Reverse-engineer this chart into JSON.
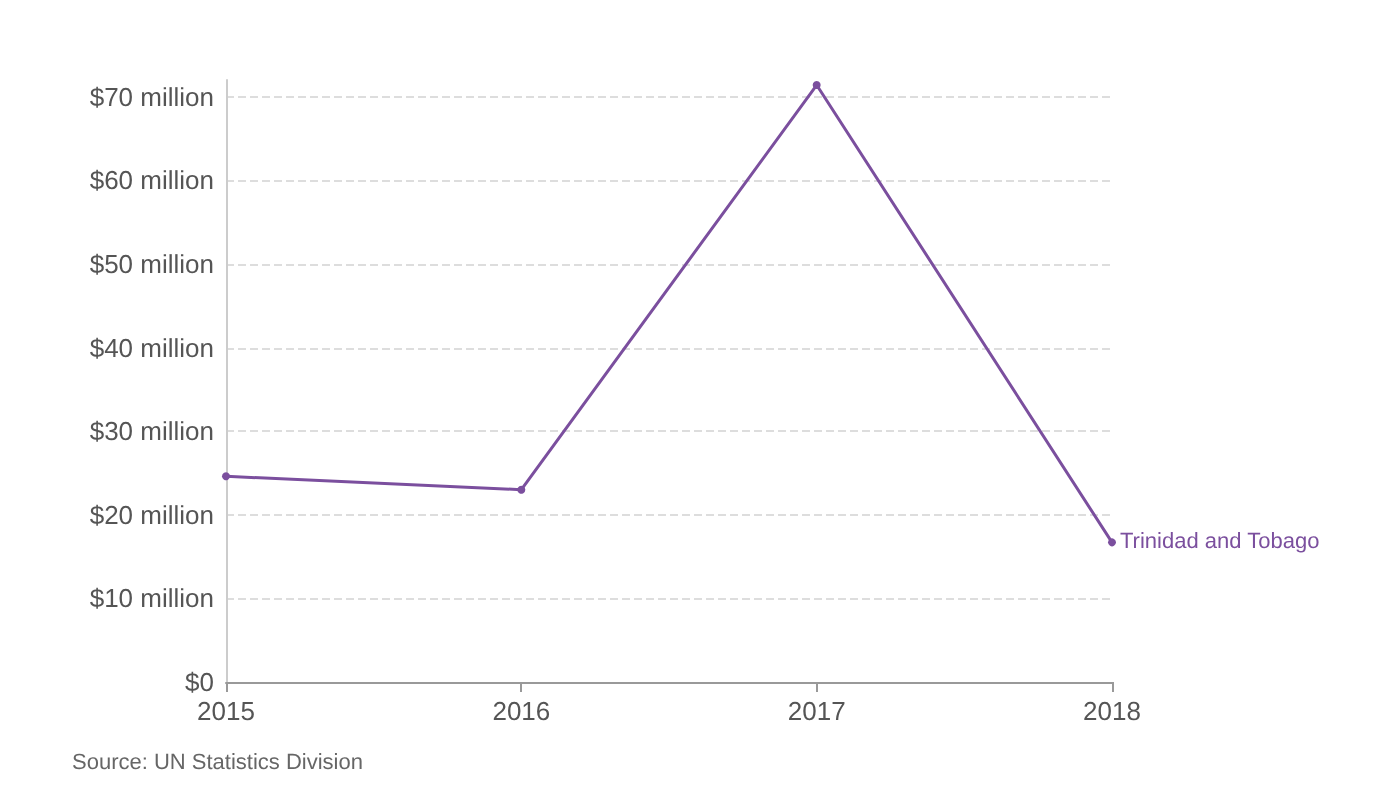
{
  "chart_data": {
    "type": "line",
    "x": [
      2015,
      2016,
      2017,
      2018
    ],
    "series": [
      {
        "name": "Trinidad and Tobago",
        "color": "#7b4f9e",
        "values": [
          24.6,
          23.0,
          71.4,
          16.7
        ]
      }
    ],
    "xlim": [
      2015,
      2018
    ],
    "xticks": [
      2015,
      2016,
      2017,
      2018
    ],
    "yticks": [
      {
        "value": 0,
        "label": "$0"
      },
      {
        "value": 10,
        "label": "$10 million"
      },
      {
        "value": 20,
        "label": "$20 million"
      },
      {
        "value": 30,
        "label": "$30 million"
      },
      {
        "value": 40,
        "label": "$40 million"
      },
      {
        "value": 50,
        "label": "$50 million"
      },
      {
        "value": 60,
        "label": "$60 million"
      },
      {
        "value": 70,
        "label": "$70 million"
      }
    ],
    "ylim": [
      0,
      72
    ],
    "grid": "y",
    "marker": "circle",
    "line_style": "solid",
    "legend": false,
    "annotations": [
      "Source: UN Statistics Division"
    ]
  }
}
